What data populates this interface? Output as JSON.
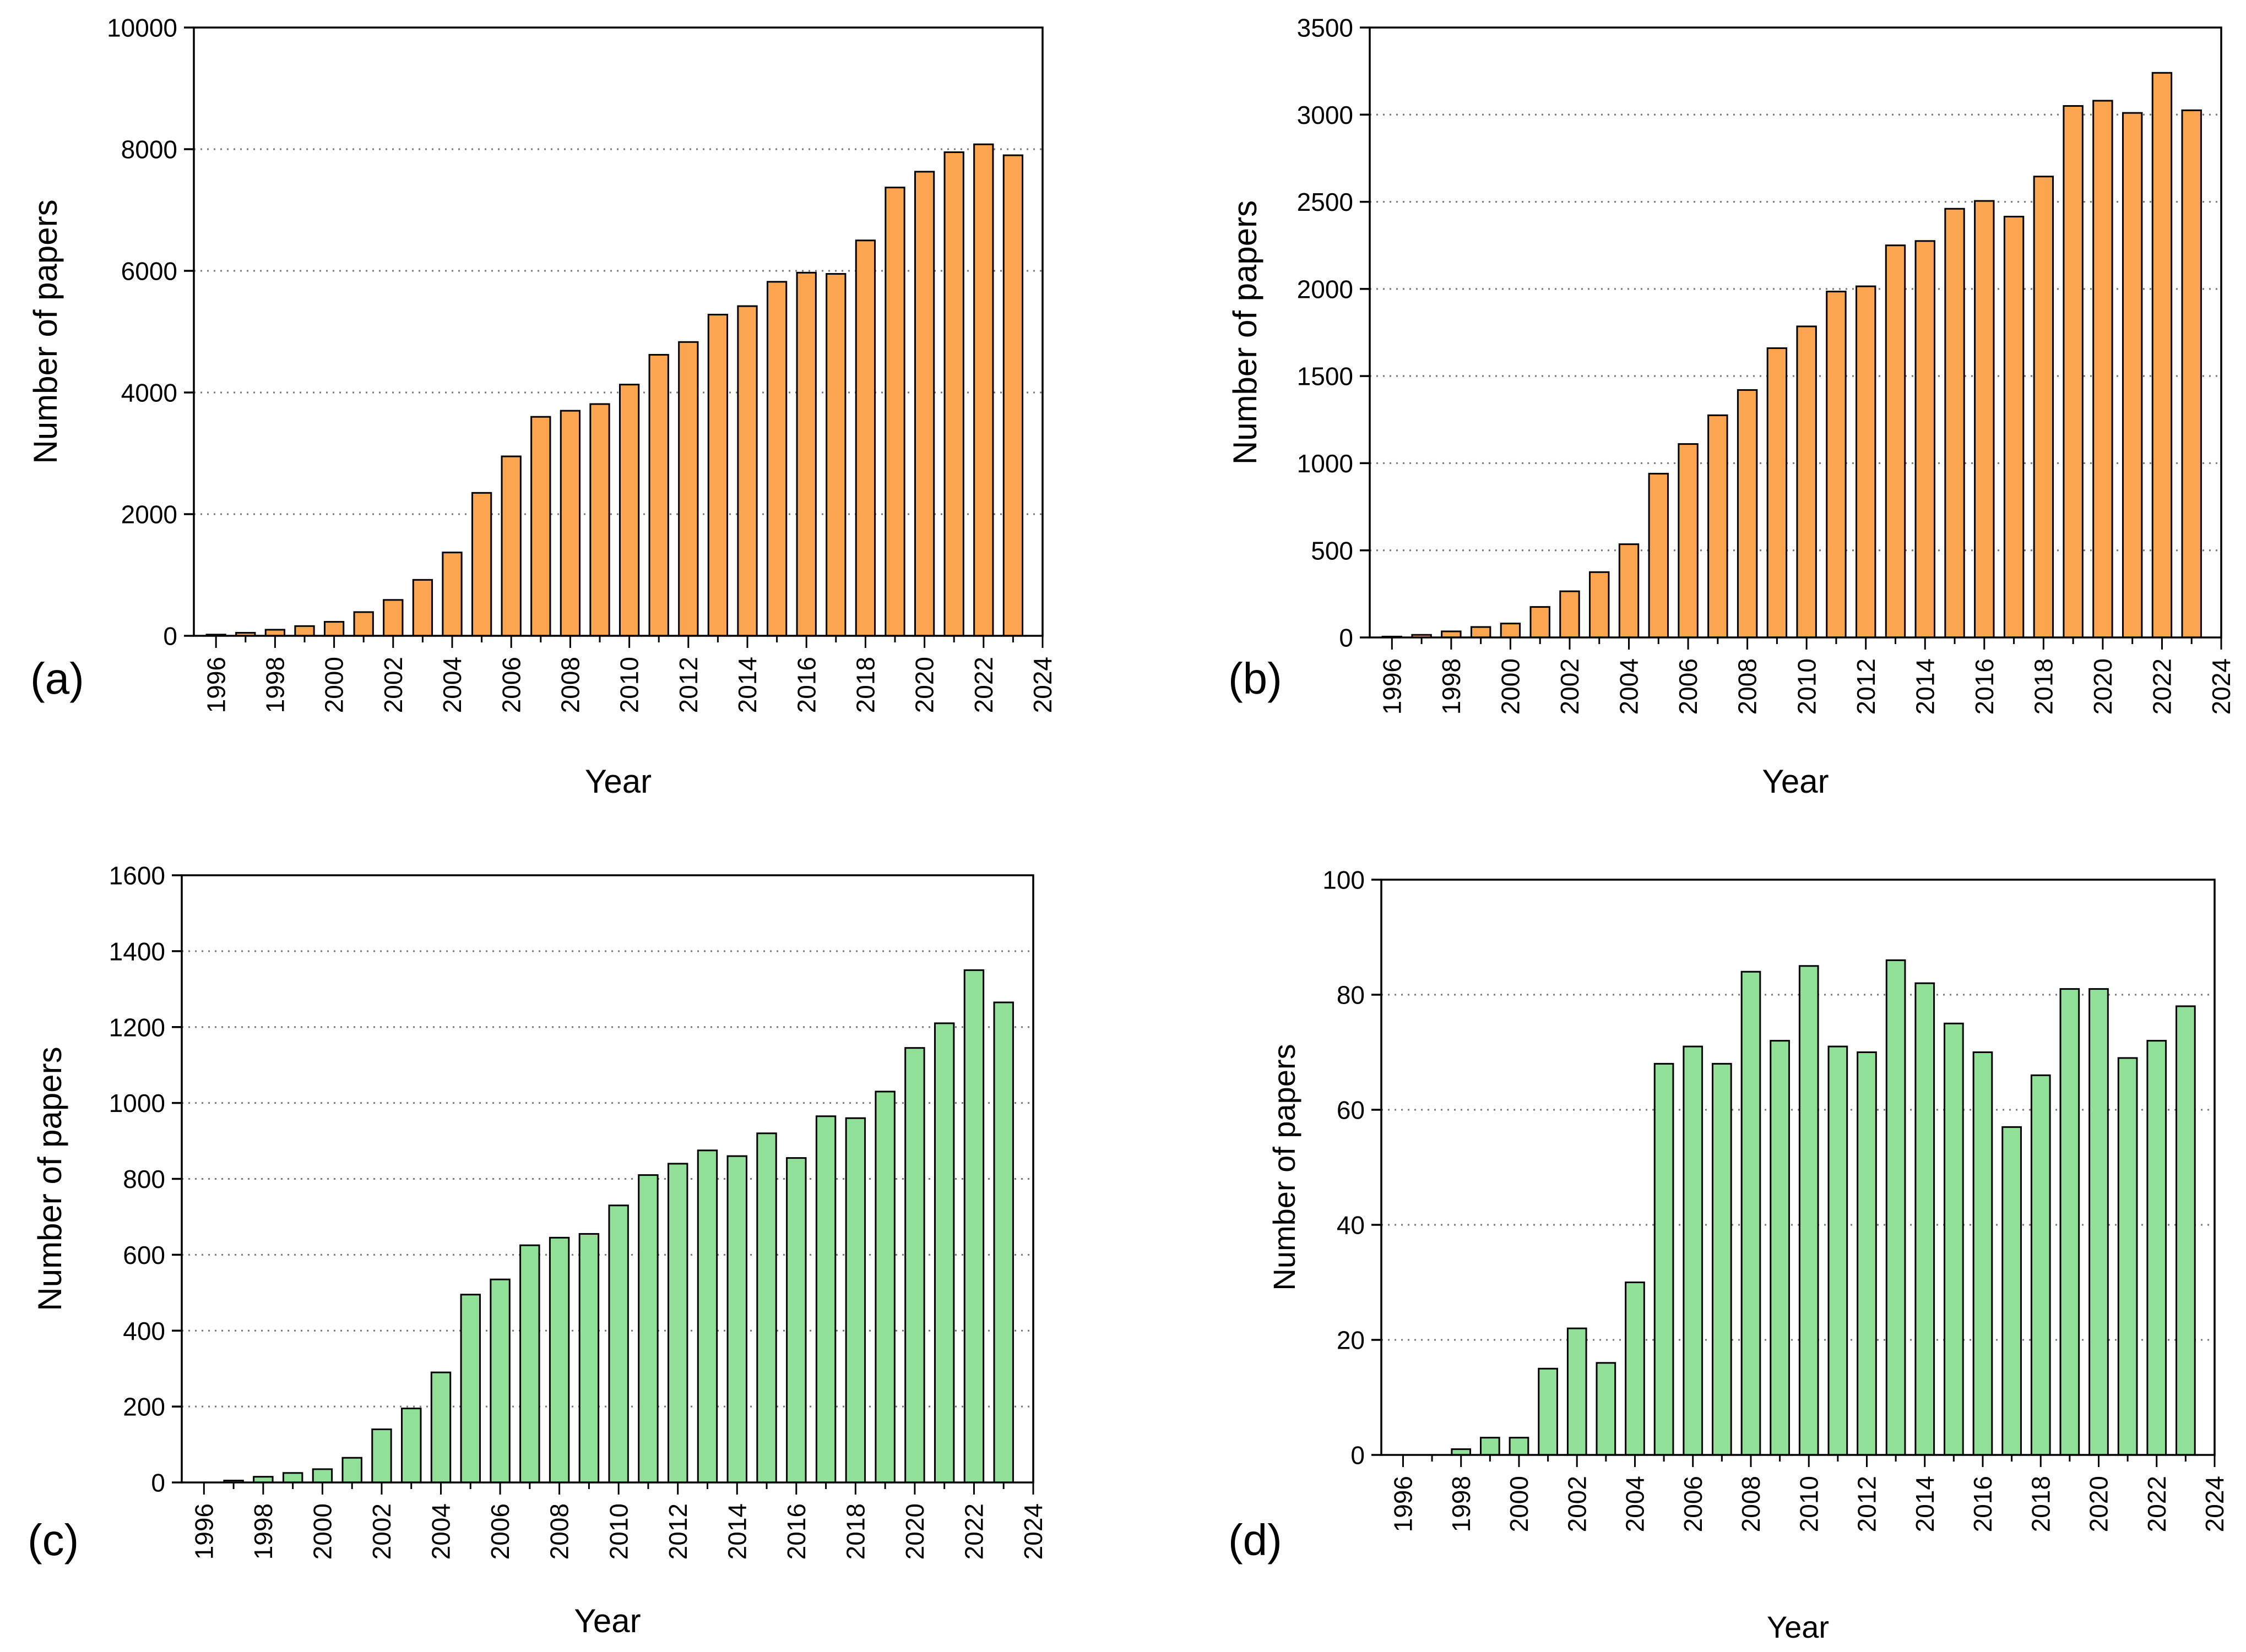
{
  "chart_data": [
    {
      "type": "bar",
      "panel_label": "(a)",
      "xlabel": "Year",
      "ylabel": "Number of papers",
      "bar_color": "#fba551",
      "ylim": [
        0,
        10000
      ],
      "yticks": [
        "0",
        "2000",
        "4000",
        "6000",
        "8000",
        "10000"
      ],
      "xticks": [
        "1996",
        "1998",
        "2000",
        "2002",
        "2004",
        "2006",
        "2008",
        "2010",
        "2012",
        "2014",
        "2016",
        "2018",
        "2020",
        "2022",
        "2024"
      ],
      "x": [
        1996,
        1997,
        1998,
        1999,
        2000,
        2001,
        2002,
        2003,
        2004,
        2005,
        2006,
        2007,
        2008,
        2009,
        2010,
        2011,
        2012,
        2013,
        2014,
        2015,
        2016,
        2017,
        2018,
        2019,
        2020,
        2021,
        2022,
        2023
      ],
      "values": [
        20,
        50,
        100,
        160,
        230,
        390,
        590,
        920,
        1370,
        2350,
        2950,
        3600,
        3700,
        3810,
        4130,
        4620,
        4830,
        5280,
        5420,
        5820,
        5970,
        5950,
        6500,
        7370,
        7630,
        7950,
        8080,
        7900
      ]
    },
    {
      "type": "bar",
      "panel_label": "(b)",
      "xlabel": "Year",
      "ylabel": "Number of papers",
      "bar_color": "#fba551",
      "ylim": [
        0,
        3500
      ],
      "yticks": [
        "0",
        "500",
        "1000",
        "1500",
        "2000",
        "2500",
        "3000",
        "3500"
      ],
      "xticks": [
        "1996",
        "1998",
        "2000",
        "2002",
        "2004",
        "2006",
        "2008",
        "2010",
        "2012",
        "2014",
        "2016",
        "2018",
        "2020",
        "2022",
        "2024"
      ],
      "x": [
        1996,
        1997,
        1998,
        1999,
        2000,
        2001,
        2002,
        2003,
        2004,
        2005,
        2006,
        2007,
        2008,
        2009,
        2010,
        2011,
        2012,
        2013,
        2014,
        2015,
        2016,
        2017,
        2018,
        2019,
        2020,
        2021,
        2022,
        2023
      ],
      "values": [
        5,
        15,
        35,
        60,
        80,
        175,
        265,
        375,
        535,
        940,
        1110,
        1275,
        1420,
        1660,
        1785,
        1985,
        2015,
        2250,
        2275,
        2460,
        2505,
        2415,
        2645,
        3050,
        3080,
        3010,
        3240,
        3025
      ]
    },
    {
      "type": "bar",
      "panel_label": "(c)",
      "xlabel": "Year",
      "ylabel": "Number of papers",
      "bar_color": "#90e098",
      "ylim": [
        0,
        1600
      ],
      "yticks": [
        "0",
        "200",
        "400",
        "600",
        "800",
        "1000",
        "1200",
        "1400",
        "1600"
      ],
      "xticks": [
        "1996",
        "1998",
        "2000",
        "2002",
        "2004",
        "2006",
        "2008",
        "2010",
        "2012",
        "2014",
        "2016",
        "2018",
        "2020",
        "2022",
        "2024"
      ],
      "x": [
        1996,
        1997,
        1998,
        1999,
        2000,
        2001,
        2002,
        2003,
        2004,
        2005,
        2006,
        2007,
        2008,
        2009,
        2010,
        2011,
        2012,
        2013,
        2014,
        2015,
        2016,
        2017,
        2018,
        2019,
        2020,
        2021,
        2022,
        2023
      ],
      "values": [
        0,
        5,
        15,
        25,
        35,
        65,
        140,
        195,
        290,
        495,
        535,
        625,
        645,
        655,
        730,
        810,
        840,
        875,
        860,
        920,
        855,
        965,
        960,
        1030,
        1145,
        1210,
        1350,
        1265
      ]
    },
    {
      "type": "bar",
      "panel_label": "(d)",
      "xlabel": "Year",
      "ylabel": "Number of papers",
      "bar_color": "#90e098",
      "ylim": [
        0,
        100
      ],
      "yticks": [
        "0",
        "20",
        "40",
        "60",
        "80",
        "100"
      ],
      "xticks": [
        "1996",
        "1998",
        "2000",
        "2002",
        "2004",
        "2006",
        "2008",
        "2010",
        "2012",
        "2014",
        "2016",
        "2018",
        "2020",
        "2022",
        "2024"
      ],
      "x": [
        1996,
        1997,
        1998,
        1999,
        2000,
        2001,
        2002,
        2003,
        2004,
        2005,
        2006,
        2007,
        2008,
        2009,
        2010,
        2011,
        2012,
        2013,
        2014,
        2015,
        2016,
        2017,
        2018,
        2019,
        2020,
        2021,
        2022,
        2023
      ],
      "values": [
        0,
        0,
        1,
        3,
        3,
        15,
        22,
        16,
        30,
        68,
        71,
        68,
        84,
        72,
        85,
        71,
        70,
        86,
        82,
        75,
        70,
        57,
        66,
        81,
        81,
        69,
        72,
        78
      ]
    }
  ]
}
